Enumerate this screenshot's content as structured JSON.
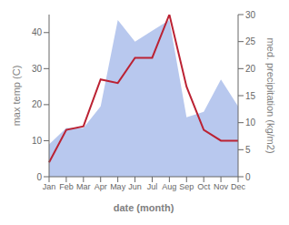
{
  "chart_data": {
    "type": "line",
    "xlabel": "date (month)",
    "ylabel": "max temp (C)",
    "y2label": "med. precipitation (kg/m2)",
    "categories": [
      "Jan",
      "Feb",
      "Mar",
      "Apr",
      "May",
      "Jun",
      "Jul",
      "Aug",
      "Sep",
      "Oct",
      "Nov",
      "Dec"
    ],
    "series": [
      {
        "type": "area",
        "axis": "y2",
        "color": "#b8c8ee",
        "values": [
          6,
          9,
          9,
          13,
          29,
          25,
          27,
          29,
          11,
          12,
          18,
          13
        ]
      },
      {
        "type": "line",
        "color": "#bb2233",
        "values": [
          4,
          13,
          14,
          27,
          26,
          33,
          33,
          45,
          25,
          13,
          10,
          10
        ]
      }
    ],
    "ylim": [
      0,
      45
    ],
    "yticks": [
      0,
      10,
      20,
      30,
      40
    ],
    "y2lim": [
      0,
      30
    ],
    "y2ticks": [
      0,
      5,
      10,
      15,
      20,
      25,
      30
    ],
    "grid": false
  }
}
